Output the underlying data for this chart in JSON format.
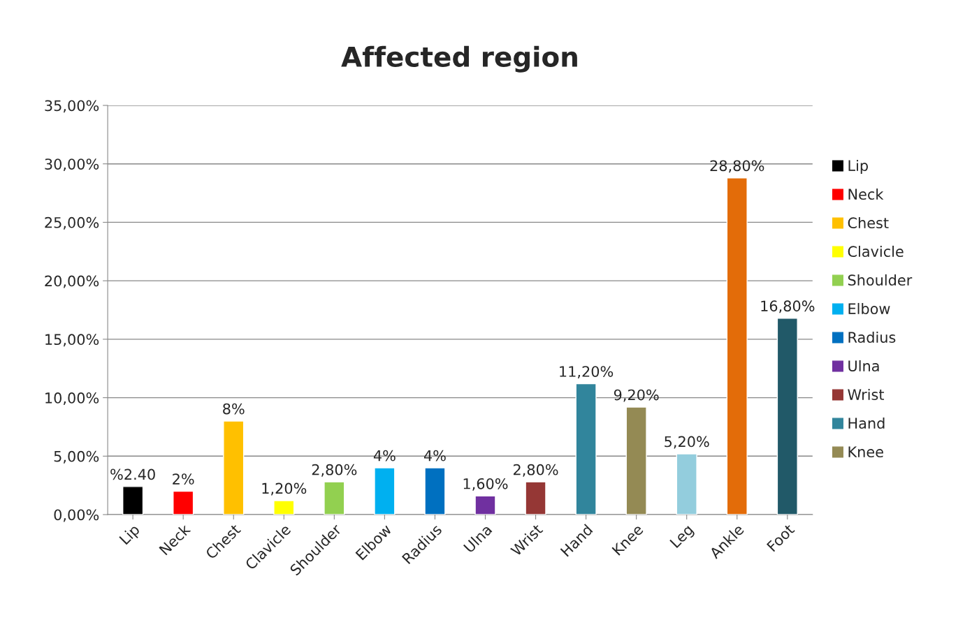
{
  "chart_data": {
    "type": "bar",
    "title": "Affected region",
    "categories": [
      "Lip",
      "Neck",
      "Chest",
      "Clavicle",
      "Shoulder",
      "Elbow",
      "Radius",
      "Ulna",
      "Wrist",
      "Hand",
      "Knee",
      "Leg",
      "Ankle",
      "Foot"
    ],
    "series": [
      {
        "name": "Lip",
        "color": "#000000",
        "values": [
          2.4,
          null,
          null,
          null,
          null,
          null,
          null,
          null,
          null,
          null,
          null,
          null,
          null,
          null
        ],
        "value_labels": [
          "%2.40",
          null,
          null,
          null,
          null,
          null,
          null,
          null,
          null,
          null,
          null,
          null,
          null,
          null
        ]
      },
      {
        "name": "Neck",
        "color": "#ff0000",
        "values": [
          null,
          2,
          null,
          null,
          null,
          null,
          null,
          null,
          null,
          null,
          null,
          null,
          null,
          null
        ],
        "value_labels": [
          null,
          "2%",
          null,
          null,
          null,
          null,
          null,
          null,
          null,
          null,
          null,
          null,
          null,
          null
        ]
      },
      {
        "name": "Chest",
        "color": "#ffc000",
        "values": [
          null,
          null,
          8,
          null,
          null,
          null,
          null,
          null,
          null,
          null,
          null,
          null,
          null,
          null
        ],
        "value_labels": [
          null,
          null,
          "8%",
          null,
          null,
          null,
          null,
          null,
          null,
          null,
          null,
          null,
          null,
          null
        ]
      },
      {
        "name": "Clavicle",
        "color": "#ffff00",
        "values": [
          null,
          null,
          null,
          1.2,
          null,
          null,
          null,
          null,
          null,
          null,
          null,
          null,
          null,
          null
        ],
        "value_labels": [
          null,
          null,
          null,
          "1,20%",
          null,
          null,
          null,
          null,
          null,
          null,
          null,
          null,
          null,
          null
        ]
      },
      {
        "name": "Shoulder",
        "color": "#92d050",
        "values": [
          null,
          null,
          null,
          null,
          2.8,
          null,
          null,
          null,
          null,
          null,
          null,
          null,
          null,
          null
        ],
        "value_labels": [
          null,
          null,
          null,
          null,
          "2,80%",
          null,
          null,
          null,
          null,
          null,
          null,
          null,
          null,
          null
        ]
      },
      {
        "name": "Elbow",
        "color": "#00b0f0",
        "values": [
          null,
          null,
          null,
          null,
          null,
          4,
          null,
          null,
          null,
          null,
          null,
          null,
          null,
          null
        ],
        "value_labels": [
          null,
          null,
          null,
          null,
          null,
          "4%",
          null,
          null,
          null,
          null,
          null,
          null,
          null,
          null
        ]
      },
      {
        "name": "Radius",
        "color": "#0070c0",
        "values": [
          null,
          null,
          null,
          null,
          null,
          null,
          4,
          null,
          null,
          null,
          null,
          null,
          null,
          null
        ],
        "value_labels": [
          null,
          null,
          null,
          null,
          null,
          null,
          "4%",
          null,
          null,
          null,
          null,
          null,
          null,
          null
        ]
      },
      {
        "name": "Ulna",
        "color": "#7030a0",
        "values": [
          null,
          null,
          null,
          null,
          null,
          null,
          null,
          1.6,
          null,
          null,
          null,
          null,
          null,
          null
        ],
        "value_labels": [
          null,
          null,
          null,
          null,
          null,
          null,
          null,
          "1,60%",
          null,
          null,
          null,
          null,
          null,
          null
        ]
      },
      {
        "name": "Wrist",
        "color": "#953735",
        "values": [
          null,
          null,
          null,
          null,
          null,
          null,
          null,
          null,
          2.8,
          null,
          null,
          null,
          null,
          null
        ],
        "value_labels": [
          null,
          null,
          null,
          null,
          null,
          null,
          null,
          null,
          "2,80%",
          null,
          null,
          null,
          null,
          null
        ]
      },
      {
        "name": "Hand",
        "color": "#31859c",
        "values": [
          null,
          null,
          null,
          null,
          null,
          null,
          null,
          null,
          null,
          11.2,
          null,
          null,
          null,
          null
        ],
        "value_labels": [
          null,
          null,
          null,
          null,
          null,
          null,
          null,
          null,
          null,
          "11,20%",
          null,
          null,
          null,
          null
        ]
      },
      {
        "name": "Knee",
        "color": "#948a54",
        "values": [
          null,
          null,
          null,
          null,
          null,
          null,
          null,
          null,
          null,
          null,
          9.2,
          null,
          null,
          null
        ],
        "value_labels": [
          null,
          null,
          null,
          null,
          null,
          null,
          null,
          null,
          null,
          null,
          "9,20%",
          null,
          null,
          null
        ]
      },
      {
        "color": "#93cddd",
        "values": [
          null,
          null,
          null,
          null,
          null,
          null,
          null,
          null,
          null,
          null,
          null,
          5.2,
          null,
          null
        ],
        "value_labels": [
          null,
          null,
          null,
          null,
          null,
          null,
          null,
          null,
          null,
          null,
          null,
          "5,20%",
          null,
          null
        ]
      },
      {
        "color": "#e36c09",
        "values": [
          null,
          null,
          null,
          null,
          null,
          null,
          null,
          null,
          null,
          null,
          null,
          null,
          28.8,
          null
        ],
        "value_labels": [
          null,
          null,
          null,
          null,
          null,
          null,
          null,
          null,
          null,
          null,
          null,
          null,
          "28,80%",
          null
        ]
      },
      {
        "color": "#215968",
        "values": [
          null,
          null,
          null,
          null,
          null,
          null,
          null,
          null,
          null,
          null,
          null,
          null,
          null,
          16.8
        ],
        "value_labels": [
          null,
          null,
          null,
          null,
          null,
          null,
          null,
          null,
          null,
          null,
          null,
          null,
          null,
          "16,80%"
        ]
      }
    ],
    "ylim": [
      0,
      35
    ],
    "yticks": [
      {
        "value": 0,
        "label": "0,00%"
      },
      {
        "value": 5,
        "label": "5,00%"
      },
      {
        "value": 10,
        "label": "10,00%"
      },
      {
        "value": 15,
        "label": "15,00%"
      },
      {
        "value": 20,
        "label": "20,00%"
      },
      {
        "value": 25,
        "label": "25,00%"
      },
      {
        "value": 30,
        "label": "30,00%"
      },
      {
        "value": 35,
        "label": "35,00%"
      }
    ],
    "grid": "y",
    "legend": "right"
  }
}
